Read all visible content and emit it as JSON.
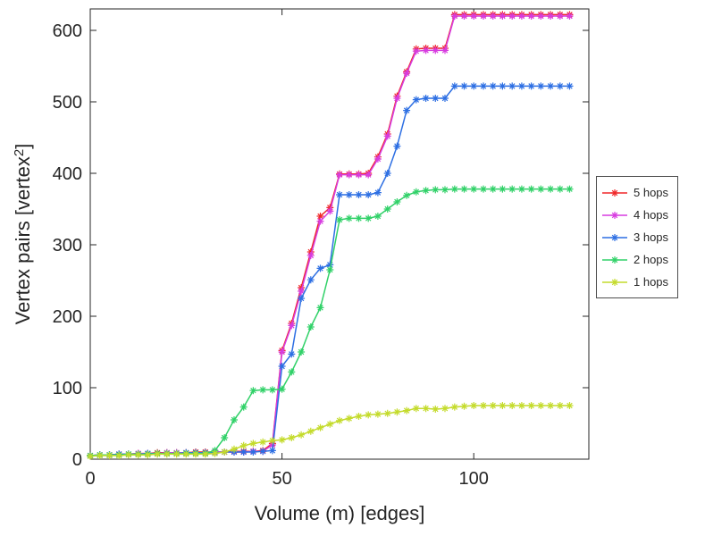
{
  "figure": {
    "background": "#ffffff",
    "axis_color": "#262626",
    "tick_label_color": "#262626",
    "tick_label_font_size": 20,
    "axis_label_font_size": 22
  },
  "chart_data": {
    "type": "line",
    "title": "",
    "xlabel": "Volume (m) [edges]",
    "ylabel": "Vertex pairs [vertex",
    "ylabel_sup": "2",
    "ylabel_close": "]",
    "xlim": [
      0,
      130
    ],
    "ylim": [
      0,
      630
    ],
    "xticks": [
      0,
      50,
      100
    ],
    "yticks": [
      0,
      100,
      200,
      300,
      400,
      500,
      600
    ],
    "grid": false,
    "marker": "*",
    "legend_position": "right-outside",
    "legend_entries": [
      "5 hops",
      "4 hops",
      "3 hops",
      "2 hops",
      "1 hops"
    ],
    "x": [
      0,
      2.5,
      5,
      7.5,
      10,
      12.5,
      15,
      17.5,
      20,
      22.5,
      25,
      27.5,
      30,
      32.5,
      35,
      37.5,
      40,
      42.5,
      45,
      47.5,
      50,
      52.5,
      55,
      57.5,
      60,
      62.5,
      65,
      67.5,
      70,
      72.5,
      75,
      77.5,
      80,
      82.5,
      85,
      87.5,
      90,
      92.5,
      95,
      97.5,
      100,
      102.5,
      105,
      107.5,
      110,
      112.5,
      115,
      117.5,
      120,
      122.5,
      125
    ],
    "series": [
      {
        "name": "5 hops",
        "color": "#f02728",
        "y": [
          5,
          6,
          6,
          7,
          7,
          8,
          8,
          9,
          9,
          9,
          9,
          10,
          10,
          10,
          10,
          11,
          11,
          11,
          12,
          22,
          152,
          190,
          240,
          290,
          340,
          352,
          399,
          399,
          399,
          400,
          423,
          455,
          508,
          542,
          574,
          575,
          575,
          575,
          622,
          622,
          622,
          622,
          622,
          622,
          622,
          622,
          622,
          622,
          622,
          622,
          622
        ]
      },
      {
        "name": "4 hops",
        "color": "#d73ce0",
        "y": [
          5,
          6,
          6,
          7,
          7,
          8,
          8,
          8,
          9,
          9,
          9,
          9,
          9,
          10,
          10,
          10,
          10,
          11,
          11,
          20,
          150,
          187,
          235,
          285,
          333,
          347,
          398,
          398,
          398,
          398,
          420,
          452,
          505,
          540,
          571,
          572,
          572,
          572,
          620,
          620,
          620,
          620,
          620,
          620,
          620,
          620,
          620,
          620,
          620,
          620,
          620
        ]
      },
      {
        "name": "3 hops",
        "color": "#2d6fe3",
        "y": [
          5,
          6,
          6,
          7,
          7,
          7,
          8,
          8,
          8,
          8,
          9,
          9,
          9,
          9,
          10,
          10,
          10,
          10,
          11,
          12,
          130,
          147,
          225,
          251,
          267,
          272,
          370,
          370,
          370,
          370,
          373,
          400,
          438,
          488,
          503,
          505,
          505,
          505,
          522,
          522,
          522,
          522,
          522,
          522,
          522,
          522,
          522,
          522,
          522,
          522,
          522
        ]
      },
      {
        "name": "2 hops",
        "color": "#30d168",
        "y": [
          5,
          6,
          6,
          6,
          7,
          7,
          7,
          8,
          8,
          8,
          8,
          8,
          8,
          12,
          30,
          55,
          73,
          96,
          97,
          97,
          98,
          122,
          150,
          185,
          212,
          265,
          335,
          337,
          337,
          337,
          340,
          350,
          360,
          369,
          374,
          376,
          377,
          377,
          378,
          378,
          378,
          378,
          378,
          378,
          378,
          378,
          378,
          378,
          378,
          378,
          378
        ]
      },
      {
        "name": "1 hops",
        "color": "#c4db2b",
        "y": [
          4,
          5,
          5,
          5,
          6,
          6,
          6,
          7,
          7,
          7,
          7,
          7,
          7,
          8,
          10,
          14,
          19,
          22,
          24,
          26,
          27,
          30,
          34,
          39,
          44,
          49,
          54,
          57,
          60,
          62,
          63,
          64,
          66,
          68,
          71,
          71,
          70,
          71,
          73,
          74,
          75,
          75,
          75,
          75,
          75,
          75,
          75,
          75,
          75,
          75,
          75
        ]
      }
    ]
  }
}
